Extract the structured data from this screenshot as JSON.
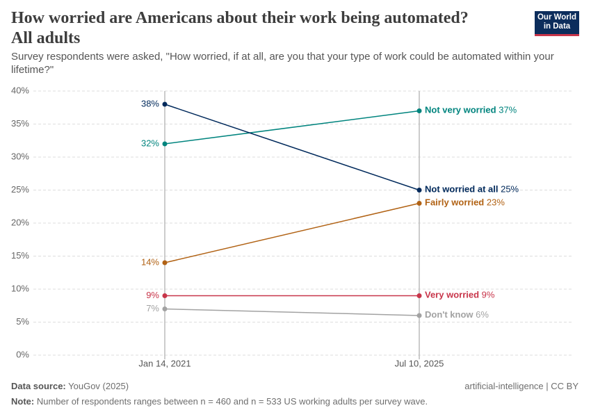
{
  "chart_data": {
    "type": "line",
    "title": "How worried are Americans about their work being automated? All adults",
    "subtitle": "Survey respondents were asked, \"How worried, if at all, are you that your type of work could be automated within your lifetime?\"",
    "logo": [
      "Our World",
      "in Data"
    ],
    "categories": [
      "Jan 14, 2021",
      "Jul 10, 2025"
    ],
    "series": [
      {
        "name": "Not very worried",
        "color": "#00847e",
        "values": [
          32,
          37
        ],
        "value_labels": [
          "32%",
          "37%"
        ]
      },
      {
        "name": "Not worried at all",
        "color": "#00295b",
        "values": [
          38,
          25
        ],
        "value_labels": [
          "38%",
          "25%"
        ]
      },
      {
        "name": "Fairly worried",
        "color": "#b16214",
        "values": [
          14,
          23
        ],
        "value_labels": [
          "14%",
          "23%"
        ]
      },
      {
        "name": "Very worried",
        "color": "#c8354a",
        "values": [
          9,
          9
        ],
        "value_labels": [
          "9%",
          "9%"
        ]
      },
      {
        "name": "Don't know",
        "color": "#a2a2a2",
        "values": [
          7,
          6
        ],
        "value_labels": [
          "7%",
          "6%"
        ]
      }
    ],
    "ylim": [
      0,
      40
    ],
    "yticks": [
      {
        "value": 0,
        "label": "0%"
      },
      {
        "value": 5,
        "label": "5%"
      },
      {
        "value": 10,
        "label": "10%"
      },
      {
        "value": 15,
        "label": "15%"
      },
      {
        "value": 20,
        "label": "20%"
      },
      {
        "value": 25,
        "label": "25%"
      },
      {
        "value": 30,
        "label": "30%"
      },
      {
        "value": 35,
        "label": "35%"
      },
      {
        "value": 40,
        "label": "40%"
      }
    ],
    "grid": true,
    "source_label": "Data source:",
    "source": "YouGov (2025)",
    "license": "artificial-intelligence | CC BY",
    "note_label": "Note:",
    "note": "Number of respondents ranges between n = 460 and n = 533 US working adults per survey wave."
  }
}
